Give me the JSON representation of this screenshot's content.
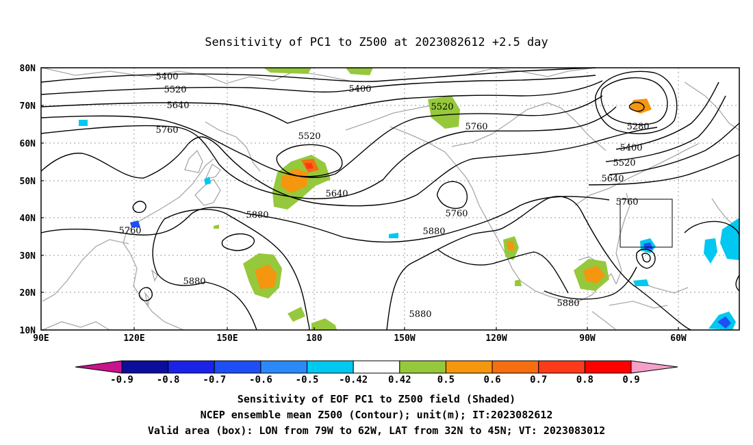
{
  "title": "Sensitivity of PC1 to Z500 at 2023082612 +2.5 day",
  "lat_labels": [
    "80N",
    "70N",
    "60N",
    "50N",
    "40N",
    "30N",
    "20N",
    "10N"
  ],
  "lon_labels": [
    "90E",
    "120E",
    "150E",
    "180",
    "150W",
    "120W",
    "90W",
    "60W"
  ],
  "contour_labels": [
    "5400",
    "5520",
    "5640",
    "5760",
    "5400",
    "5520",
    "5760",
    "5520",
    "5640",
    "5280",
    "5400",
    "5520",
    "5640",
    "5760",
    "5760",
    "5880",
    "5760",
    "5880",
    "5880",
    "5880",
    "5880"
  ],
  "colorbar": {
    "labels": [
      "-0.9",
      "-0.8",
      "-0.7",
      "-0.6",
      "-0.5",
      "-0.42",
      "0.42",
      "0.5",
      "0.6",
      "0.7",
      "0.8",
      "0.9"
    ],
    "colors": [
      "#0d0d9b",
      "#1a22e6",
      "#1e4ff5",
      "#2b8af7",
      "#00c8f0",
      "#ffffff",
      "#96c83c",
      "#f5960f",
      "#f56e0f",
      "#ff3a1a",
      "#ff0000"
    ],
    "low_end_color": "#c8148c",
    "high_end_color": "#f5a0c8"
  },
  "caption": [
    "Sensitivity of EOF PC1 to Z500 field (Shaded)",
    "NCEP ensemble mean Z500 (Contour); unit(m); IT:2023082612",
    "Valid area (box): LON from 79W to 62W, LAT from 32N to 45N; VT: 2023083012"
  ]
}
